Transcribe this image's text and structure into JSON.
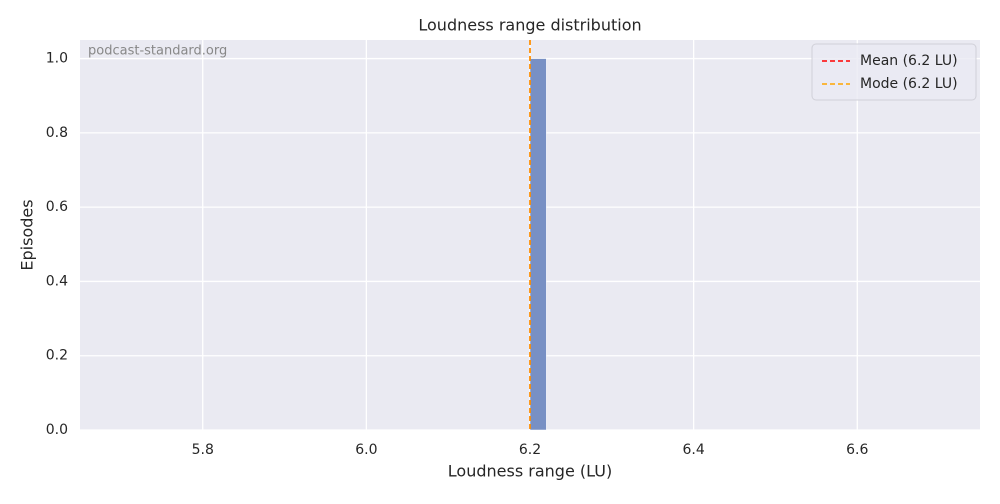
{
  "chart_data": {
    "type": "histogram",
    "title": "Loudness range distribution",
    "xlabel": "Loudness range (LU)",
    "ylabel": "Episodes",
    "watermark": "podcast-standard.org",
    "bins": [
      5.7,
      5.72,
      5.74,
      5.76,
      5.78,
      5.8,
      5.82,
      5.84,
      5.86,
      5.88,
      5.9,
      5.92,
      5.94,
      5.96,
      5.98,
      6.0,
      6.02,
      6.04,
      6.06,
      6.08,
      6.1,
      6.12,
      6.14,
      6.16,
      6.18,
      6.2,
      6.22,
      6.24,
      6.26,
      6.28,
      6.3,
      6.32,
      6.34,
      6.36,
      6.38,
      6.4,
      6.42,
      6.44,
      6.46,
      6.48,
      6.5,
      6.52,
      6.54,
      6.56,
      6.58,
      6.6,
      6.62,
      6.64,
      6.66,
      6.68,
      6.7
    ],
    "counts": [
      0,
      0,
      0,
      0,
      0,
      0,
      0,
      0,
      0,
      0,
      0,
      0,
      0,
      0,
      0,
      0,
      0,
      0,
      0,
      0,
      0,
      0,
      0,
      0,
      0,
      1,
      0,
      0,
      0,
      0,
      0,
      0,
      0,
      0,
      0,
      0,
      0,
      0,
      0,
      0,
      0,
      0,
      0,
      0,
      0,
      0,
      0,
      0,
      0,
      0
    ],
    "color": "#7890c4",
    "lines": [
      {
        "name": "Mean (6.2 LU)",
        "value": 6.2,
        "color": "red"
      },
      {
        "name": "Mode (6.2 LU)",
        "value": 6.2,
        "color": "orange"
      }
    ],
    "xlim": [
      5.65,
      6.75
    ],
    "xticks": [
      5.8,
      {
        "value": 6.0,
        "label": "6.0"
      },
      6.2,
      6.4,
      6.6
    ],
    "ylim": [
      0,
      1.05
    ],
    "yticks": [
      {
        "value": 0,
        "label": "0.0"
      },
      0.2,
      0.4,
      0.6,
      0.8,
      {
        "value": 1,
        "label": "1.0"
      }
    ],
    "grid": true,
    "legend": "upper right"
  }
}
